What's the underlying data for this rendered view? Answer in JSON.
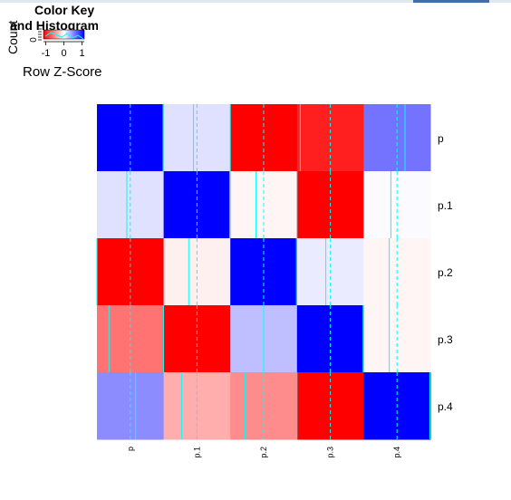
{
  "color_key": {
    "title_line1": "Color Key",
    "title_line2": "and Histogram",
    "xlabel": "Row Z-Score",
    "ylabel": "Count",
    "x_ticks": [
      "-1",
      "0",
      "1"
    ],
    "y_ticks": [
      "0"
    ],
    "gradient": [
      "#ff0000",
      "#ffffff",
      "#0000ff"
    ]
  },
  "chart_data": {
    "type": "heatmap",
    "title": "",
    "xlabel": "",
    "ylabel": "",
    "rows": [
      "p",
      "p.1",
      "p.2",
      "p.3",
      "p.4"
    ],
    "cols": [
      "p",
      "p.1",
      "p.2",
      "p.3",
      "p.4"
    ],
    "values": [
      [
        1.48,
        0.12,
        -1.0,
        -0.88,
        0.55
      ],
      [
        0.12,
        1.48,
        -0.04,
        -1.0,
        0.02
      ],
      [
        -1.0,
        -0.06,
        1.48,
        0.08,
        -0.04
      ],
      [
        -0.55,
        -1.0,
        0.25,
        1.48,
        -0.04
      ],
      [
        0.45,
        -0.32,
        -0.45,
        -1.0,
        1.48
      ]
    ],
    "zlim": [
      -1,
      1.5
    ],
    "color_scale": [
      "#ff0000",
      "#ffffff",
      "#0000ff"
    ],
    "trace_color": "#00ffff"
  }
}
